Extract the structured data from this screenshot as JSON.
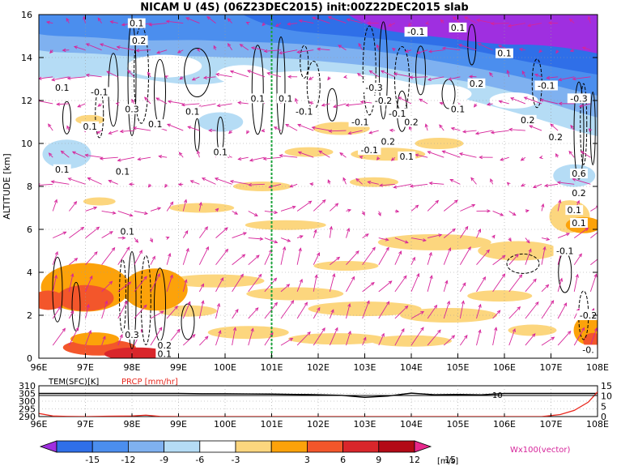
{
  "chart_data": [
    {
      "type": "heatmap",
      "title": "NICAM U (4S) (06Z23DEC2015) init:00Z22DEC2015 slab",
      "ylabel": "ALTITUDE [km]",
      "xlim": [
        96,
        108
      ],
      "ylim": [
        0,
        16
      ],
      "x_ticks": [
        "96E",
        "97E",
        "98E",
        "99E",
        "100E",
        "101E",
        "102E",
        "103E",
        "104E",
        "105E",
        "106E",
        "107E",
        "108E"
      ],
      "y_ticks": [
        "0",
        "2",
        "4",
        "6",
        "8",
        "10",
        "12",
        "14",
        "16"
      ],
      "grid": true,
      "marker_line_lon": 101,
      "contour_labels": [
        {
          "lon": 98.1,
          "alt": 15.6,
          "text": "0.1"
        },
        {
          "lon": 98.15,
          "alt": 14.8,
          "text": "0.2"
        },
        {
          "lon": 96.5,
          "alt": 12.6,
          "text": "0.1"
        },
        {
          "lon": 97.3,
          "alt": 12.4,
          "text": "-0.1"
        },
        {
          "lon": 98.0,
          "alt": 11.6,
          "text": "0.3"
        },
        {
          "lon": 99.3,
          "alt": 11.5,
          "text": "0.1"
        },
        {
          "lon": 97.1,
          "alt": 10.8,
          "text": "0.1"
        },
        {
          "lon": 98.5,
          "alt": 10.9,
          "text": "0.1"
        },
        {
          "lon": 99.9,
          "alt": 9.6,
          "text": "0.1"
        },
        {
          "lon": 96.5,
          "alt": 8.8,
          "text": "0.1"
        },
        {
          "lon": 97.8,
          "alt": 8.7,
          "text": "0.1"
        },
        {
          "lon": 100.7,
          "alt": 12.1,
          "text": "0.1"
        },
        {
          "lon": 101.3,
          "alt": 12.1,
          "text": "0.1"
        },
        {
          "lon": 101.7,
          "alt": 11.5,
          "text": "-0.1"
        },
        {
          "lon": 103.2,
          "alt": 12.6,
          "text": "-0.3"
        },
        {
          "lon": 103.4,
          "alt": 12.0,
          "text": "-0.2"
        },
        {
          "lon": 102.9,
          "alt": 11.0,
          "text": "-0.1"
        },
        {
          "lon": 103.7,
          "alt": 11.4,
          "text": "-0.1"
        },
        {
          "lon": 104.0,
          "alt": 11.0,
          "text": "0.2"
        },
        {
          "lon": 103.5,
          "alt": 10.1,
          "text": "0.2"
        },
        {
          "lon": 103.1,
          "alt": 9.7,
          "text": "-0.1"
        },
        {
          "lon": 103.9,
          "alt": 9.4,
          "text": "0.1"
        },
        {
          "lon": 104.1,
          "alt": 15.2,
          "text": "-0.1"
        },
        {
          "lon": 105.0,
          "alt": 15.4,
          "text": "0.1"
        },
        {
          "lon": 106.0,
          "alt": 14.2,
          "text": "0.1"
        },
        {
          "lon": 105.4,
          "alt": 12.8,
          "text": "0.2"
        },
        {
          "lon": 105.0,
          "alt": 11.6,
          "text": "0.1"
        },
        {
          "lon": 106.9,
          "alt": 12.7,
          "text": "-0.1"
        },
        {
          "lon": 107.6,
          "alt": 12.1,
          "text": "-0.3"
        },
        {
          "lon": 106.5,
          "alt": 11.1,
          "text": "0.2"
        },
        {
          "lon": 107.1,
          "alt": 10.3,
          "text": "0.2"
        },
        {
          "lon": 107.6,
          "alt": 8.6,
          "text": "0.6"
        },
        {
          "lon": 107.6,
          "alt": 7.7,
          "text": "0.2"
        },
        {
          "lon": 107.5,
          "alt": 6.9,
          "text": "0.1"
        },
        {
          "lon": 107.6,
          "alt": 6.3,
          "text": "0.1"
        },
        {
          "lon": 107.3,
          "alt": 5.0,
          "text": "-0.1"
        },
        {
          "lon": 97.9,
          "alt": 5.9,
          "text": "0.1"
        },
        {
          "lon": 98.0,
          "alt": 1.1,
          "text": "0.3"
        },
        {
          "lon": 98.7,
          "alt": 0.6,
          "text": "0.2"
        },
        {
          "lon": 98.7,
          "alt": 0.2,
          "text": "0.1"
        },
        {
          "lon": 107.8,
          "alt": 2.0,
          "text": "-0.2"
        },
        {
          "lon": 107.8,
          "alt": 0.4,
          "text": "-0."
        }
      ]
    },
    {
      "type": "line",
      "series_labels": {
        "tem": "TEM(SFC)[K]",
        "prcp": "PRCP [mm/hr]"
      },
      "x_ticks": [
        "96E",
        "97E",
        "98E",
        "99E",
        "100E",
        "101E",
        "102E",
        "103E",
        "104E",
        "105E",
        "106E",
        "107E",
        "108E"
      ],
      "y_left_ticks": [
        "290",
        "295",
        "300",
        "305",
        "310"
      ],
      "y_right_ticks": [
        "0",
        "5",
        "10",
        "15"
      ],
      "y_left_range": [
        290,
        310
      ],
      "y_right_range": [
        0,
        15
      ],
      "series_colors": {
        "tem": "#000000",
        "prcp": "#e8281e"
      },
      "annotation": "10",
      "tem_x": [
        96,
        96.5,
        97,
        97.5,
        98,
        98.5,
        99,
        99.5,
        100,
        100.5,
        101,
        101.5,
        102,
        102.5,
        103,
        103.5,
        104,
        104.5,
        105,
        105.5,
        106,
        106.5,
        107,
        107.5,
        108
      ],
      "tem_y": [
        305,
        305,
        305,
        305,
        305,
        305,
        305,
        304.8,
        304.8,
        304.7,
        304.6,
        304.4,
        304.2,
        303.8,
        302.5,
        303.3,
        305.2,
        304.2,
        304.4,
        304.1,
        305,
        305,
        305,
        305,
        305
      ],
      "prcp_x": [
        96,
        96.3,
        96.6,
        97,
        97.5,
        98,
        98.3,
        98.6,
        99,
        100,
        101,
        102,
        103,
        104,
        105,
        106,
        106.8,
        107.2,
        107.5,
        107.8,
        108
      ],
      "prcp_y": [
        1.5,
        0.3,
        0.1,
        0,
        0.2,
        0.3,
        0.7,
        0.1,
        0,
        0,
        0,
        0,
        0,
        0,
        0,
        0,
        0,
        1,
        3,
        7,
        12
      ]
    },
    {
      "type": "colorbar",
      "levels": [
        "-15",
        "-12",
        "-9",
        "-6",
        "-3",
        "3",
        "6",
        "9",
        "12",
        "15"
      ],
      "colors": [
        "#9f2fe0",
        "#2f6fe8",
        "#4b8eee",
        "#7fb1f0",
        "#b5dcf5",
        "#ffffff",
        "#fcd67e",
        "#fca20a",
        "#f3562b",
        "#d9262b",
        "#b30a16",
        "#e8288c"
      ],
      "unit": "[m/s]",
      "vector_label": "Wx100(vector)"
    }
  ]
}
